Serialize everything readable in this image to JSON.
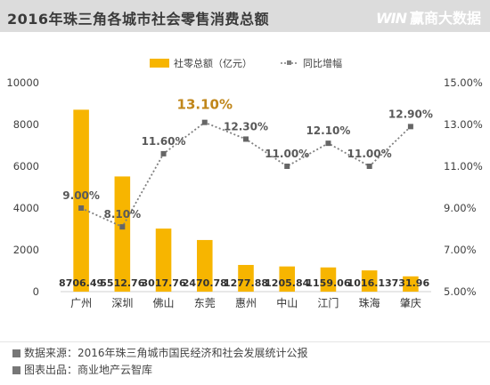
{
  "header": {
    "title": "2016年珠三角各城市社会零售消费总额",
    "brand": "赢商大数据",
    "brand_mark": "WIN"
  },
  "chart_data": {
    "type": "bar",
    "categories": [
      "广州",
      "深圳",
      "佛山",
      "东莞",
      "惠州",
      "中山",
      "江门",
      "珠海",
      "肇庆"
    ],
    "series": [
      {
        "name": "社零总额（亿元）",
        "kind": "bar",
        "axis": "left",
        "values": [
          8706.49,
          5512.76,
          3017.76,
          2470.78,
          1277.88,
          1205.84,
          1159.06,
          1016.13,
          731.96
        ],
        "labels": [
          "8706.49",
          "5512.76",
          "3017.76",
          "2470.78",
          "1277.88",
          "1205.84",
          "1159.06",
          "1016.13",
          "731.96"
        ],
        "color": "#f7b500"
      },
      {
        "name": "同比增幅",
        "kind": "line",
        "axis": "right",
        "values": [
          9.0,
          8.1,
          11.6,
          13.1,
          12.3,
          11.0,
          12.1,
          11.0,
          12.9
        ],
        "labels": [
          "9.00%",
          "8.10%",
          "11.60%",
          "13.10%",
          "12.30%",
          "11.00%",
          "12.10%",
          "11.00%",
          "12.90%"
        ],
        "color": "#7f7f7f",
        "highlight_index": 3,
        "highlight_color": "#c0861a"
      }
    ],
    "y_left": {
      "min": 0,
      "max": 10000,
      "ticks": [
        0,
        2000,
        4000,
        6000,
        8000,
        10000
      ]
    },
    "y_right": {
      "min": 5,
      "max": 15,
      "ticks": [
        5,
        7,
        9,
        11,
        13,
        15
      ],
      "tick_labels": [
        "5.00%",
        "7.00%",
        "9.00%",
        "11.00%",
        "13.00%",
        "15.00%"
      ]
    },
    "grid": false,
    "legend_position": "top"
  },
  "footer": {
    "source": "数据来源：2016年珠三角城市国民经济和社会发展统计公报",
    "producer": "图表出品：商业地产云智库"
  }
}
